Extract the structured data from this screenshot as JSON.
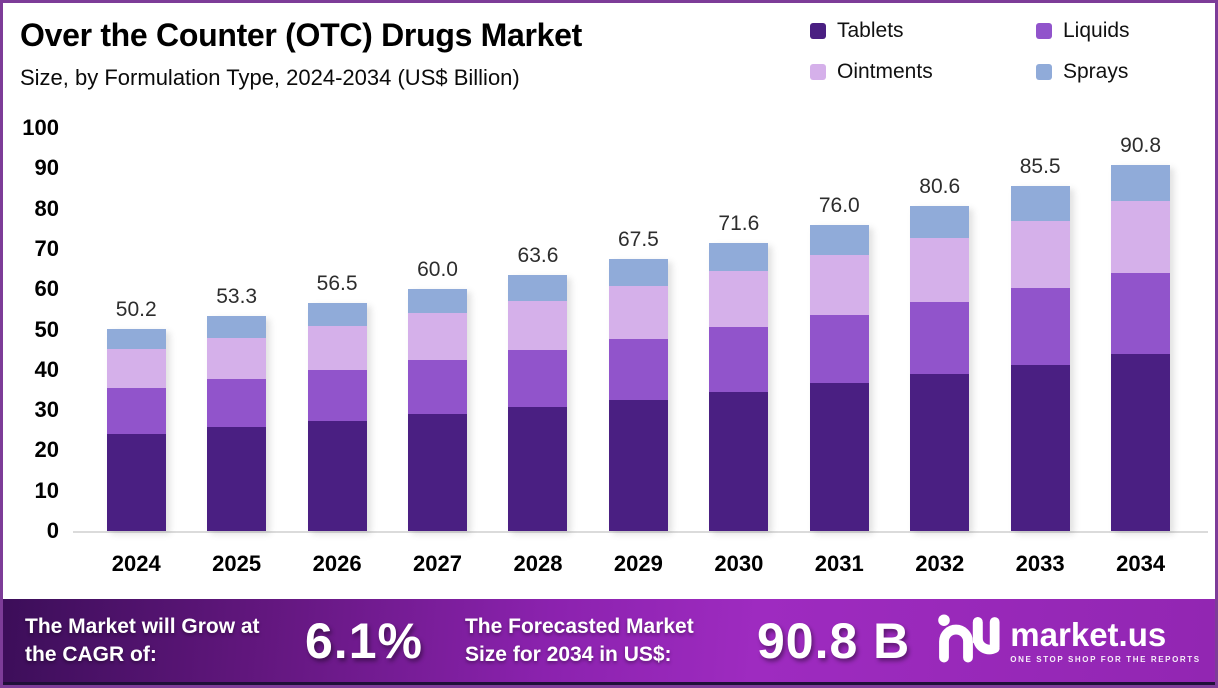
{
  "header": {
    "title": "Over the Counter (OTC) Drugs Market",
    "subtitle": "Size, by Formulation Type, 2024-2034 (US$ Billion)"
  },
  "colors": {
    "tablets": "#4A1F82",
    "liquids": "#9154CB",
    "ointments": "#D5B0EA",
    "sprays": "#90ABD9",
    "border": "#7D3C98",
    "banner_left": "#3C0E59",
    "banner_right": "#9226B2",
    "bottom_strip": "#1F1038"
  },
  "chart_data": {
    "type": "bar",
    "stacked": true,
    "title": "Over the Counter (OTC) Drugs Market Size, by Formulation Type, 2024-2034 (US$ Billion)",
    "xlabel": "",
    "ylabel": "US$ Billion",
    "ylim": [
      0,
      100
    ],
    "yticks": [
      0,
      10,
      20,
      30,
      40,
      50,
      60,
      70,
      80,
      90,
      100
    ],
    "grid": false,
    "legend_position": "top-right",
    "categories": [
      "2024",
      "2025",
      "2026",
      "2027",
      "2028",
      "2029",
      "2030",
      "2031",
      "2032",
      "2033",
      "2034"
    ],
    "series": [
      {
        "name": "Tablets",
        "color": "#4A1F82",
        "values": [
          24.2,
          25.7,
          27.3,
          29.0,
          30.7,
          32.6,
          34.6,
          36.7,
          38.9,
          41.3,
          43.9
        ]
      },
      {
        "name": "Liquids",
        "color": "#9154CB",
        "values": [
          11.3,
          11.9,
          12.6,
          13.4,
          14.2,
          15.0,
          16.0,
          16.9,
          18.0,
          19.1,
          20.2
        ]
      },
      {
        "name": "Ointments",
        "color": "#D5B0EA",
        "values": [
          9.7,
          10.4,
          11.0,
          11.6,
          12.3,
          13.2,
          13.9,
          14.8,
          15.7,
          16.6,
          17.7
        ]
      },
      {
        "name": "Sprays",
        "color": "#90ABD9",
        "values": [
          5.0,
          5.3,
          5.6,
          6.0,
          6.4,
          6.7,
          7.1,
          7.6,
          8.0,
          8.5,
          9.0
        ]
      }
    ],
    "totals": [
      50.2,
      53.3,
      56.5,
      60.0,
      63.6,
      67.5,
      71.6,
      76.0,
      80.6,
      85.5,
      90.8
    ]
  },
  "legend": [
    {
      "label": "Tablets",
      "color": "#4A1F82"
    },
    {
      "label": "Liquids",
      "color": "#9154CB"
    },
    {
      "label": "Ointments",
      "color": "#D5B0EA"
    },
    {
      "label": "Sprays",
      "color": "#90ABD9"
    }
  ],
  "footer": {
    "cagr_label": "The Market will Grow at the CAGR of:",
    "cagr_value": "6.1%",
    "forecast_label": "The Forecasted Market Size for 2034 in US$:",
    "forecast_value": "90.8 B",
    "brand_name": "market.us",
    "brand_tagline": "ONE STOP SHOP FOR THE REPORTS"
  }
}
